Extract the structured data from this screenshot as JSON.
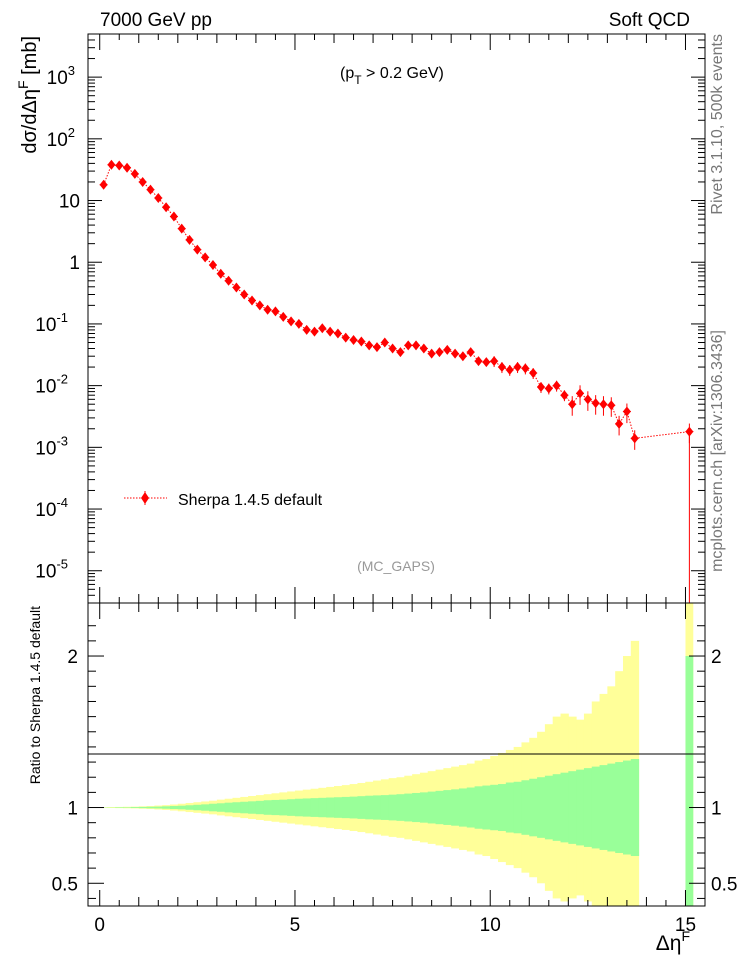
{
  "header": {
    "left": "7000 GeV pp",
    "right": "Soft QCD"
  },
  "side_labels": {
    "rivet": "Rivet 3.1.10,  500k events",
    "mcplots": "mcplots.cern.ch [arXiv:1306.3436]"
  },
  "annotations": {
    "cut": "(p_T > 0.2 GeV)",
    "analysis": "(MC_GAPS)"
  },
  "colors": {
    "data": "#ff0000",
    "band_inner": "#99ff99",
    "band_outer": "#ffff99"
  },
  "chart_data": [
    {
      "type": "scatter",
      "ylabel": "dσ/dΔη^F [mb]",
      "xlabel": "Δη^F",
      "yscale": "log",
      "xlim": [
        -0.3,
        15.5
      ],
      "ylim": [
        3e-06,
        5000
      ],
      "yticks": [
        1e-05,
        0.0001,
        0.001,
        0.01,
        0.1,
        1,
        10,
        100,
        1000
      ],
      "ytick_labels": [
        "10^-5",
        "10^-4",
        "10^-3",
        "10^-2",
        "10^-1",
        "1",
        "10",
        "10^2",
        "10^3"
      ],
      "legend": "top-left region",
      "series": [
        {
          "name": "Sherpa 1.4.5 default",
          "x": [
            0.1,
            0.3,
            0.5,
            0.7,
            0.9,
            1.1,
            1.3,
            1.5,
            1.7,
            1.9,
            2.1,
            2.3,
            2.5,
            2.7,
            2.9,
            3.1,
            3.3,
            3.5,
            3.7,
            3.9,
            4.1,
            4.3,
            4.5,
            4.7,
            4.9,
            5.1,
            5.3,
            5.5,
            5.7,
            5.9,
            6.1,
            6.3,
            6.5,
            6.7,
            6.9,
            7.1,
            7.3,
            7.5,
            7.7,
            7.9,
            8.1,
            8.3,
            8.5,
            8.7,
            8.9,
            9.1,
            9.3,
            9.5,
            9.7,
            9.9,
            10.1,
            10.3,
            10.5,
            10.7,
            10.9,
            11.1,
            11.3,
            11.5,
            11.7,
            11.9,
            12.1,
            12.3,
            12.5,
            12.7,
            12.9,
            13.1,
            13.3,
            13.5,
            13.7,
            15.1
          ],
          "values": [
            18,
            38,
            37,
            34,
            27,
            20,
            15,
            11,
            7.8,
            5.5,
            3.5,
            2.3,
            1.6,
            1.2,
            0.9,
            0.65,
            0.5,
            0.39,
            0.3,
            0.24,
            0.2,
            0.17,
            0.16,
            0.13,
            0.11,
            0.1,
            0.08,
            0.075,
            0.085,
            0.075,
            0.07,
            0.06,
            0.055,
            0.052,
            0.045,
            0.042,
            0.05,
            0.04,
            0.035,
            0.045,
            0.045,
            0.04,
            0.033,
            0.035,
            0.038,
            0.033,
            0.03,
            0.035,
            0.025,
            0.024,
            0.025,
            0.02,
            0.018,
            0.02,
            0.019,
            0.016,
            0.0095,
            0.009,
            0.01,
            0.007,
            0.005,
            0.0075,
            0.006,
            0.0052,
            0.005,
            0.0048,
            0.0024,
            0.0038,
            0.0014,
            0.0018
          ]
        }
      ]
    },
    {
      "type": "area",
      "ylabel": "Ratio to Sherpa 1.4.5 default",
      "xlabel": "Δη^F",
      "xlim": [
        -0.3,
        15.5
      ],
      "ylim": [
        0.35,
        2.35
      ],
      "xticks": [
        0,
        5,
        10,
        15
      ],
      "yticks": [
        0.5,
        1,
        2
      ],
      "x_edges_start": 0,
      "bin_width": 0.2,
      "inner_half_width": [
        0.001,
        0.001,
        0.002,
        0.002,
        0.003,
        0.004,
        0.005,
        0.006,
        0.008,
        0.01,
        0.012,
        0.015,
        0.018,
        0.021,
        0.025,
        0.028,
        0.032,
        0.035,
        0.038,
        0.041,
        0.044,
        0.048,
        0.05,
        0.052,
        0.055,
        0.058,
        0.06,
        0.062,
        0.064,
        0.066,
        0.068,
        0.07,
        0.072,
        0.075,
        0.078,
        0.08,
        0.082,
        0.085,
        0.088,
        0.092,
        0.096,
        0.1,
        0.105,
        0.11,
        0.115,
        0.12,
        0.126,
        0.132,
        0.14,
        0.145,
        0.15,
        0.155,
        0.165,
        0.17,
        0.18,
        0.19,
        0.2,
        0.21,
        0.22,
        0.23,
        0.24,
        0.25,
        0.26,
        0.27,
        0.28,
        0.29,
        0.3,
        0.31,
        0.32
      ],
      "outer_half_width": [
        0.002,
        0.003,
        0.004,
        0.005,
        0.006,
        0.008,
        0.01,
        0.013,
        0.016,
        0.02,
        0.025,
        0.03,
        0.035,
        0.04,
        0.045,
        0.052,
        0.058,
        0.064,
        0.07,
        0.076,
        0.082,
        0.088,
        0.094,
        0.1,
        0.106,
        0.112,
        0.118,
        0.124,
        0.13,
        0.136,
        0.142,
        0.148,
        0.155,
        0.162,
        0.17,
        0.178,
        0.186,
        0.194,
        0.2,
        0.21,
        0.22,
        0.23,
        0.24,
        0.25,
        0.26,
        0.27,
        0.28,
        0.29,
        0.31,
        0.32,
        0.34,
        0.36,
        0.38,
        0.4,
        0.43,
        0.46,
        0.5,
        0.55,
        0.6,
        0.62,
        0.6,
        0.58,
        0.62,
        0.7,
        0.75,
        0.8,
        0.9,
        1.0,
        1.1
      ],
      "last_bin": {
        "x_range": [
          15.0,
          15.2
        ],
        "inner": [
          0.35,
          2.0
        ],
        "outer": [
          0.35,
          2.35
        ]
      }
    }
  ]
}
